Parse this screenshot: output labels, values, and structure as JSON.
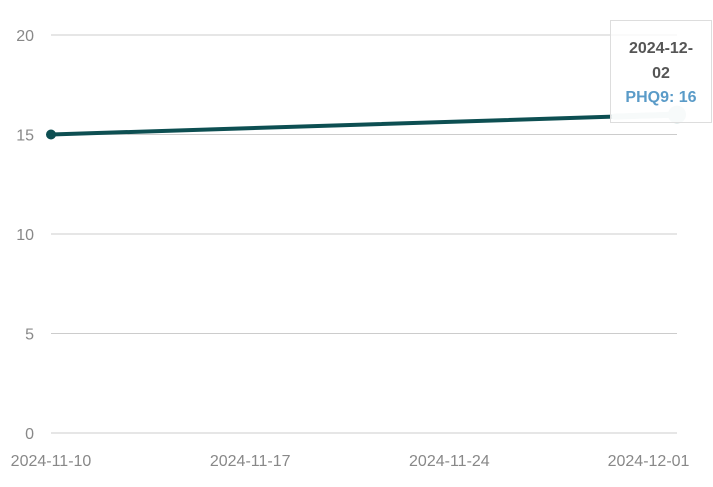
{
  "chart_data": {
    "type": "line",
    "x": [
      "2024-11-10",
      "2024-12-02"
    ],
    "series": [
      {
        "name": "PHQ9",
        "values": [
          15,
          16
        ],
        "color": "#0d4f52"
      }
    ],
    "x_ticks": [
      "2024-11-10",
      "2024-11-17",
      "2024-11-24",
      "2024-12-01"
    ],
    "y_ticks": [
      "0",
      "5",
      "10",
      "15",
      "20"
    ],
    "ylim": [
      0,
      20
    ],
    "xlim": [
      "2024-11-10",
      "2024-12-02"
    ],
    "grid": true,
    "active_point_color": "#cfe0e0",
    "tooltip": {
      "date": "2024-12-02",
      "value_text": "PHQ9: 16",
      "value_color": "#5a9bc8"
    }
  }
}
